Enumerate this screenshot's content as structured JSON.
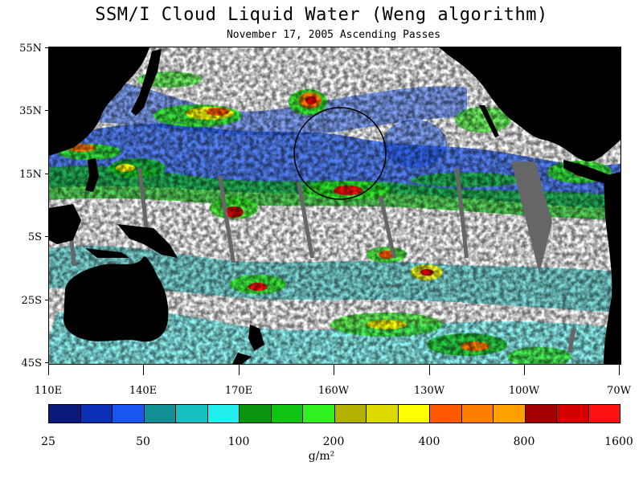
{
  "title": "SSM/I Cloud Liquid Water (Weng algorithm)",
  "subtitle": "November 17, 2005  Ascending Passes",
  "lat_labels": [
    "55N",
    "35N",
    "15N",
    "5S",
    "25S",
    "45S"
  ],
  "lon_labels": [
    "110E",
    "140E",
    "170E",
    "160W",
    "130W",
    "100W",
    "70W"
  ],
  "colorbar": {
    "tick_labels": [
      "25",
      "50",
      "100",
      "200",
      "400",
      "800",
      "1600"
    ],
    "units": "g/m²",
    "colors": [
      "#0a1a7a",
      "#0b2fb4",
      "#1a55f0",
      "#118f94",
      "#16c0c0",
      "#22eeee",
      "#0a9410",
      "#10c414",
      "#30f020",
      "#b4b000",
      "#dcd800",
      "#ffff00",
      "#ff5a00",
      "#ff7e00",
      "#ffa000",
      "#a40000",
      "#d40000",
      "#ff1010"
    ]
  },
  "colors": {
    "land": "#000000",
    "no_data": "#666666",
    "clear": "#ffffff"
  }
}
